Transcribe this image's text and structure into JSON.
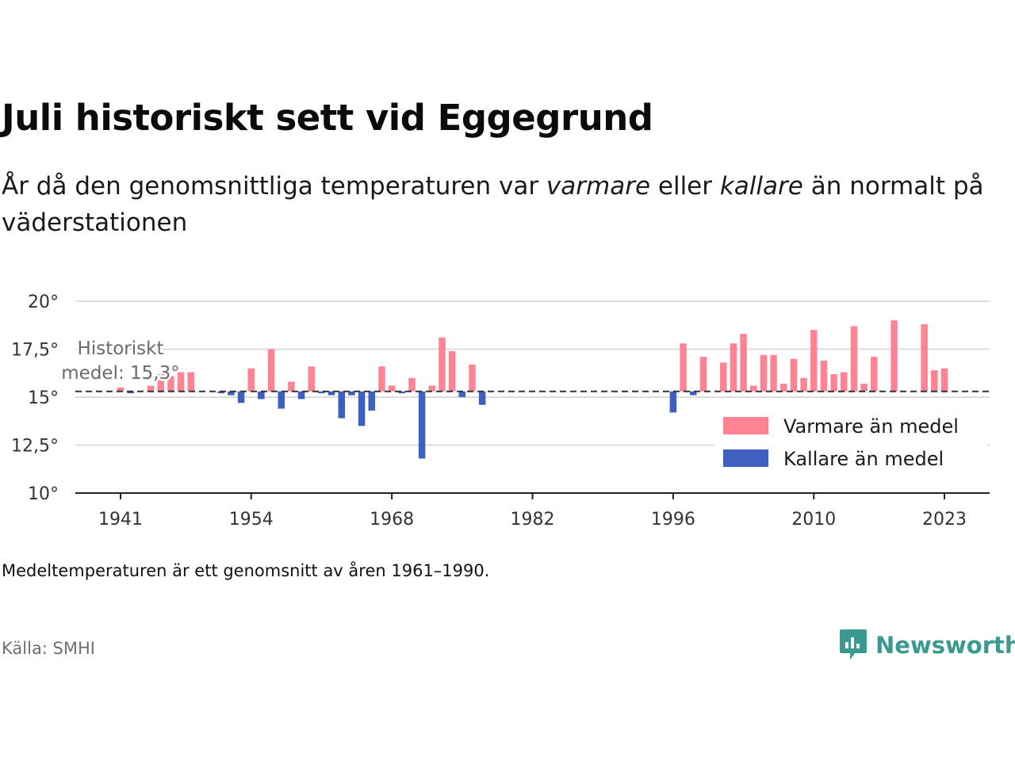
{
  "title": "Juli historiskt sett vid Eggegrund",
  "subtitle": {
    "part1": "År då den genomsnittliga temperaturen var ",
    "em1": "varmare",
    "part2": " eller ",
    "em2": "kallare",
    "part3": " än normalt på väderstationen"
  },
  "note": "Medeltemperaturen är ett genomsnitt av åren 1961–1990.",
  "source": "Källa: SMHI",
  "brand": {
    "name": "Newsworthy",
    "icon": "newsworthy-logo-icon",
    "color": "#3a9a92"
  },
  "chart_data": {
    "type": "bar",
    "baseline": 15.3,
    "reference_label_line1": "Historiskt",
    "reference_label_line2": "medel: 15,3°",
    "ylim": [
      10,
      20
    ],
    "y_ticks": [
      20,
      17.5,
      15,
      12.5,
      10
    ],
    "y_tick_labels": [
      "20°",
      "17,5°",
      "15°",
      "12,5°",
      "10°"
    ],
    "x_ticks": [
      1941,
      1954,
      1968,
      1982,
      1996,
      2010,
      2023
    ],
    "x_tick_labels": [
      "1941",
      "1954",
      "1968",
      "1982",
      "1996",
      "2010",
      "2023"
    ],
    "x_range": [
      1936.5,
      2027.5
    ],
    "grid": true,
    "legend_position": "right",
    "colors": {
      "warmer": "#ff8393",
      "colder": "#3f5fbf",
      "baseline": "#333333",
      "grid": "#dcdcdc"
    },
    "legend": [
      {
        "key": "warmer",
        "label": "Varmare än medel"
      },
      {
        "key": "colder",
        "label": "Kallare än medel"
      }
    ],
    "years": [
      1941,
      1942,
      1944,
      1945,
      1946,
      1947,
      1948,
      1951,
      1952,
      1953,
      1954,
      1955,
      1956,
      1957,
      1958,
      1959,
      1960,
      1961,
      1962,
      1963,
      1964,
      1965,
      1966,
      1967,
      1968,
      1969,
      1970,
      1971,
      1972,
      1973,
      1974,
      1975,
      1976,
      1977,
      1996,
      1997,
      1998,
      1999,
      2001,
      2002,
      2003,
      2004,
      2005,
      2006,
      2007,
      2008,
      2009,
      2010,
      2011,
      2012,
      2013,
      2014,
      2015,
      2016,
      2018,
      2021,
      2022,
      2023
    ],
    "values": [
      15.5,
      15.2,
      15.6,
      16.2,
      16.1,
      16.3,
      16.3,
      15.2,
      15.1,
      14.7,
      16.5,
      14.9,
      17.5,
      14.4,
      15.8,
      14.9,
      16.6,
      15.2,
      15.1,
      13.9,
      15.1,
      13.5,
      14.3,
      16.6,
      15.6,
      15.2,
      16.0,
      11.8,
      15.6,
      18.1,
      17.4,
      15.0,
      16.7,
      14.6,
      14.2,
      17.8,
      15.1,
      17.1,
      16.8,
      17.8,
      18.3,
      15.6,
      17.2,
      17.2,
      15.7,
      17.0,
      16.0,
      18.5,
      16.9,
      16.2,
      16.3,
      18.7,
      15.7,
      17.1,
      19.0,
      18.8,
      16.4,
      16.5
    ]
  }
}
